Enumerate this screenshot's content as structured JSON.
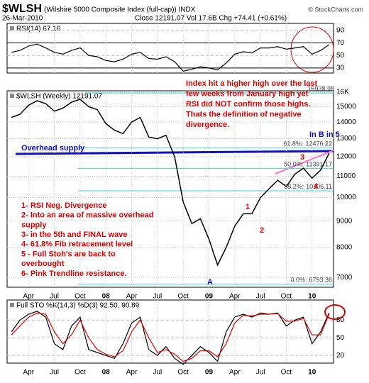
{
  "header": {
    "symbol": "$WLSH",
    "name": "(Wilshire 5000 Composite Index (full-cap)) INDX",
    "credit": "© StockCharts.com",
    "date": "26-Mar-2010",
    "quote": "Close 12191.07 Vol 17.6B Chg +74.41 (+0.61%)"
  },
  "chart_data": [
    {
      "type": "line",
      "title": "RSI(14) 67.16",
      "color": "#000000",
      "values": [
        55,
        58,
        65,
        68,
        62,
        55,
        52,
        58,
        62,
        50,
        48,
        42,
        40,
        44,
        52,
        55,
        45,
        44,
        48,
        40,
        25,
        28,
        32,
        30,
        27,
        38,
        52,
        56,
        54,
        62,
        62,
        64,
        60,
        62,
        64,
        52,
        58,
        67.16
      ],
      "ylim": [
        22,
        101
      ],
      "yticks": [
        30,
        50,
        70,
        90
      ],
      "grid": true
    },
    {
      "type": "line",
      "title": "$WLSH (Weekly) 12191.07",
      "log": true,
      "color": "#000000",
      "categories": [
        null,
        null,
        "Apr",
        null,
        null,
        "Jul",
        null,
        null,
        "Oct",
        null,
        null,
        "08",
        null,
        null,
        "Apr",
        null,
        null,
        "Jul",
        null,
        null,
        "Oct",
        null,
        null,
        "09",
        null,
        null,
        "Apr",
        null,
        null,
        "Jul",
        null,
        null,
        "Oct",
        null,
        null,
        "10",
        null,
        null
      ],
      "values": [
        14300,
        14500,
        15100,
        15400,
        15200,
        14700,
        14900,
        15300,
        15500,
        15000,
        14800,
        13900,
        13500,
        13300,
        14000,
        14300,
        13100,
        13000,
        13200,
        12000,
        9800,
        8900,
        9100,
        8300,
        7400,
        8000,
        8800,
        9300,
        9300,
        10000,
        10400,
        10800,
        10500,
        11100,
        11400,
        10900,
        11300,
        12191.07
      ],
      "ylim": [
        6700,
        16100
      ],
      "yticks": [
        {
          "value": 16000,
          "label": "16K"
        },
        15000,
        14000,
        13000,
        12000,
        11000,
        10000,
        9000,
        8000,
        7000
      ],
      "grid": true,
      "fib_levels": [
        {
          "value": 15938.98
        },
        {
          "label": "61.8%:",
          "value": 12476.22
        },
        {
          "label": "50.0%:",
          "value": 11391.17
        },
        {
          "label": "38.2%:",
          "value": 10306.11
        },
        {
          "label": "0.0%:",
          "value": 6793.36
        }
      ],
      "annotations": {
        "divergence": [
          "Index hit a higher high over the last",
          "few weeks from January high yet",
          "RSI did NOT confirm those highs.",
          "Thats the definition of negative",
          "divergence."
        ],
        "reasons": [
          "1- RSI Neg. Divergence",
          "2- Into an area of massive overhead",
          "supply",
          "3- in the 5th and FINAL wave",
          "4- 61.8% Fib retracement level",
          "5 - Full Stoh's are back to",
          "overbought",
          "6- Pink Trendline resistance."
        ],
        "supply": "Overhead supply",
        "wave_b": "In B in 5",
        "waves": [
          "1",
          "2",
          "3",
          "4",
          "A"
        ]
      }
    },
    {
      "type": "line",
      "title": "Full STO %K(14,3) %D(3) 92.50, 90.89",
      "series": [
        {
          "color": "#000000",
          "values": [
            60,
            80,
            90,
            95,
            85,
            40,
            30,
            70,
            85,
            30,
            25,
            20,
            15,
            40,
            75,
            85,
            30,
            20,
            35,
            15,
            5,
            20,
            35,
            25,
            10,
            60,
            85,
            90,
            85,
            92,
            90,
            92,
            70,
            80,
            85,
            40,
            60,
            92.5
          ]
        },
        {
          "color": "#e00000",
          "values": [
            55,
            70,
            85,
            92,
            90,
            60,
            40,
            55,
            80,
            50,
            30,
            22,
            18,
            28,
            60,
            80,
            50,
            25,
            30,
            22,
            10,
            15,
            28,
            28,
            18,
            40,
            75,
            88,
            87,
            90,
            90,
            91,
            78,
            78,
            83,
            55,
            55,
            90.89
          ]
        }
      ],
      "ylim": [
        7,
        114
      ],
      "yticks": [
        20,
        50,
        80
      ],
      "grid": true
    }
  ]
}
